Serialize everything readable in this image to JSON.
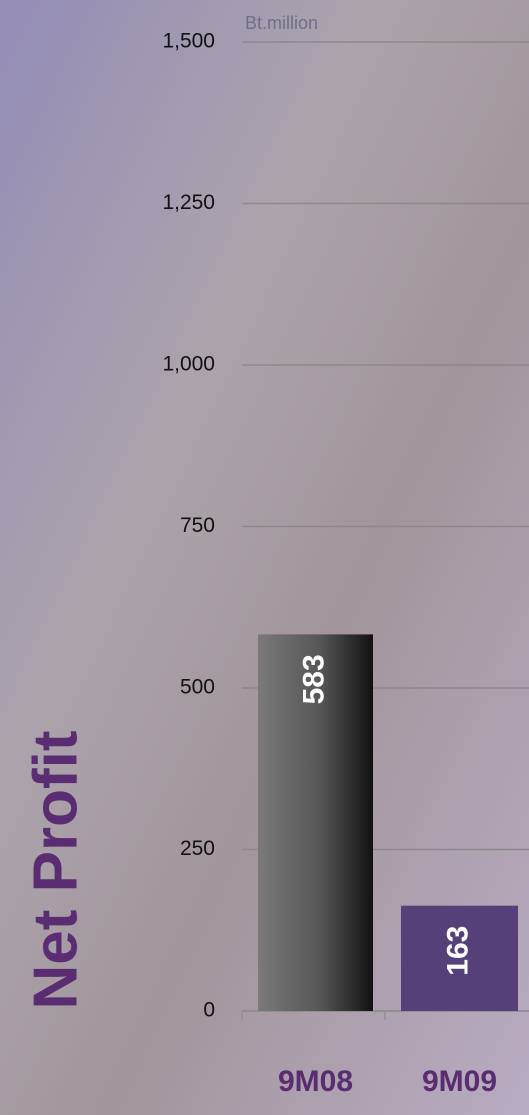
{
  "chart_data": {
    "type": "bar",
    "title": "Net Profit",
    "unit_label": "Bt.million",
    "categories": [
      "9M08",
      "9M09"
    ],
    "values": [
      583,
      163
    ],
    "colors": [
      "#6a6a6a",
      "#56407a"
    ],
    "ylim": [
      0,
      1500
    ],
    "yticks": [
      0,
      250,
      500,
      750,
      {
        "value": 1000,
        "label": "1,000"
      },
      {
        "value": 1250,
        "label": "1,250"
      },
      {
        "value": 1500,
        "label": "1,500"
      }
    ],
    "grid": true
  }
}
